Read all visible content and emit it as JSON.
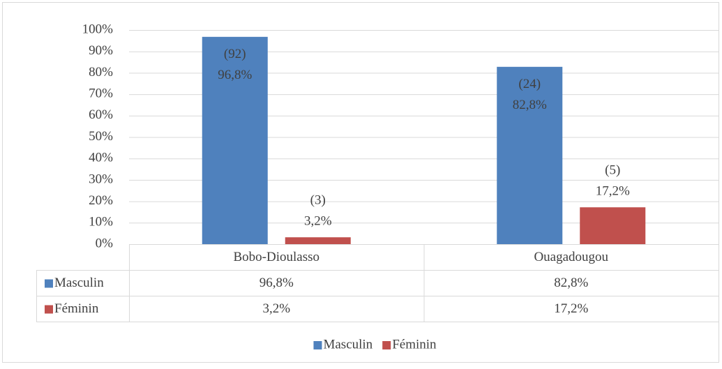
{
  "chart_data": {
    "type": "bar",
    "categories": [
      "Bobo-Dioulasso",
      "Ouagadougou"
    ],
    "series": [
      {
        "name": "Masculin",
        "color": "#4f81bd",
        "values": [
          96.8,
          82.8
        ],
        "value_labels": [
          [
            "(92)",
            "96,8%"
          ],
          [
            "(24)",
            "82,8%"
          ]
        ]
      },
      {
        "name": "Féminin",
        "color": "#c0504d",
        "values": [
          3.2,
          17.2
        ],
        "value_labels": [
          [
            "(3)",
            "3,2%"
          ],
          [
            "(5)",
            "17,2%"
          ]
        ]
      }
    ],
    "ylim": [
      0,
      100
    ],
    "yticks": [
      {
        "value": 0,
        "label": "0%"
      },
      {
        "value": 10,
        "label": "10%"
      },
      {
        "value": 20,
        "label": "20%"
      },
      {
        "value": 30,
        "label": "30%"
      },
      {
        "value": 40,
        "label": "40%"
      },
      {
        "value": 50,
        "label": "50%"
      },
      {
        "value": 60,
        "label": "60%"
      },
      {
        "value": 70,
        "label": "70%"
      },
      {
        "value": 80,
        "label": "80%"
      },
      {
        "value": 90,
        "label": "90%"
      },
      {
        "value": 100,
        "label": "100%"
      }
    ],
    "grid": true,
    "legend": "bottom",
    "data_table": true
  }
}
